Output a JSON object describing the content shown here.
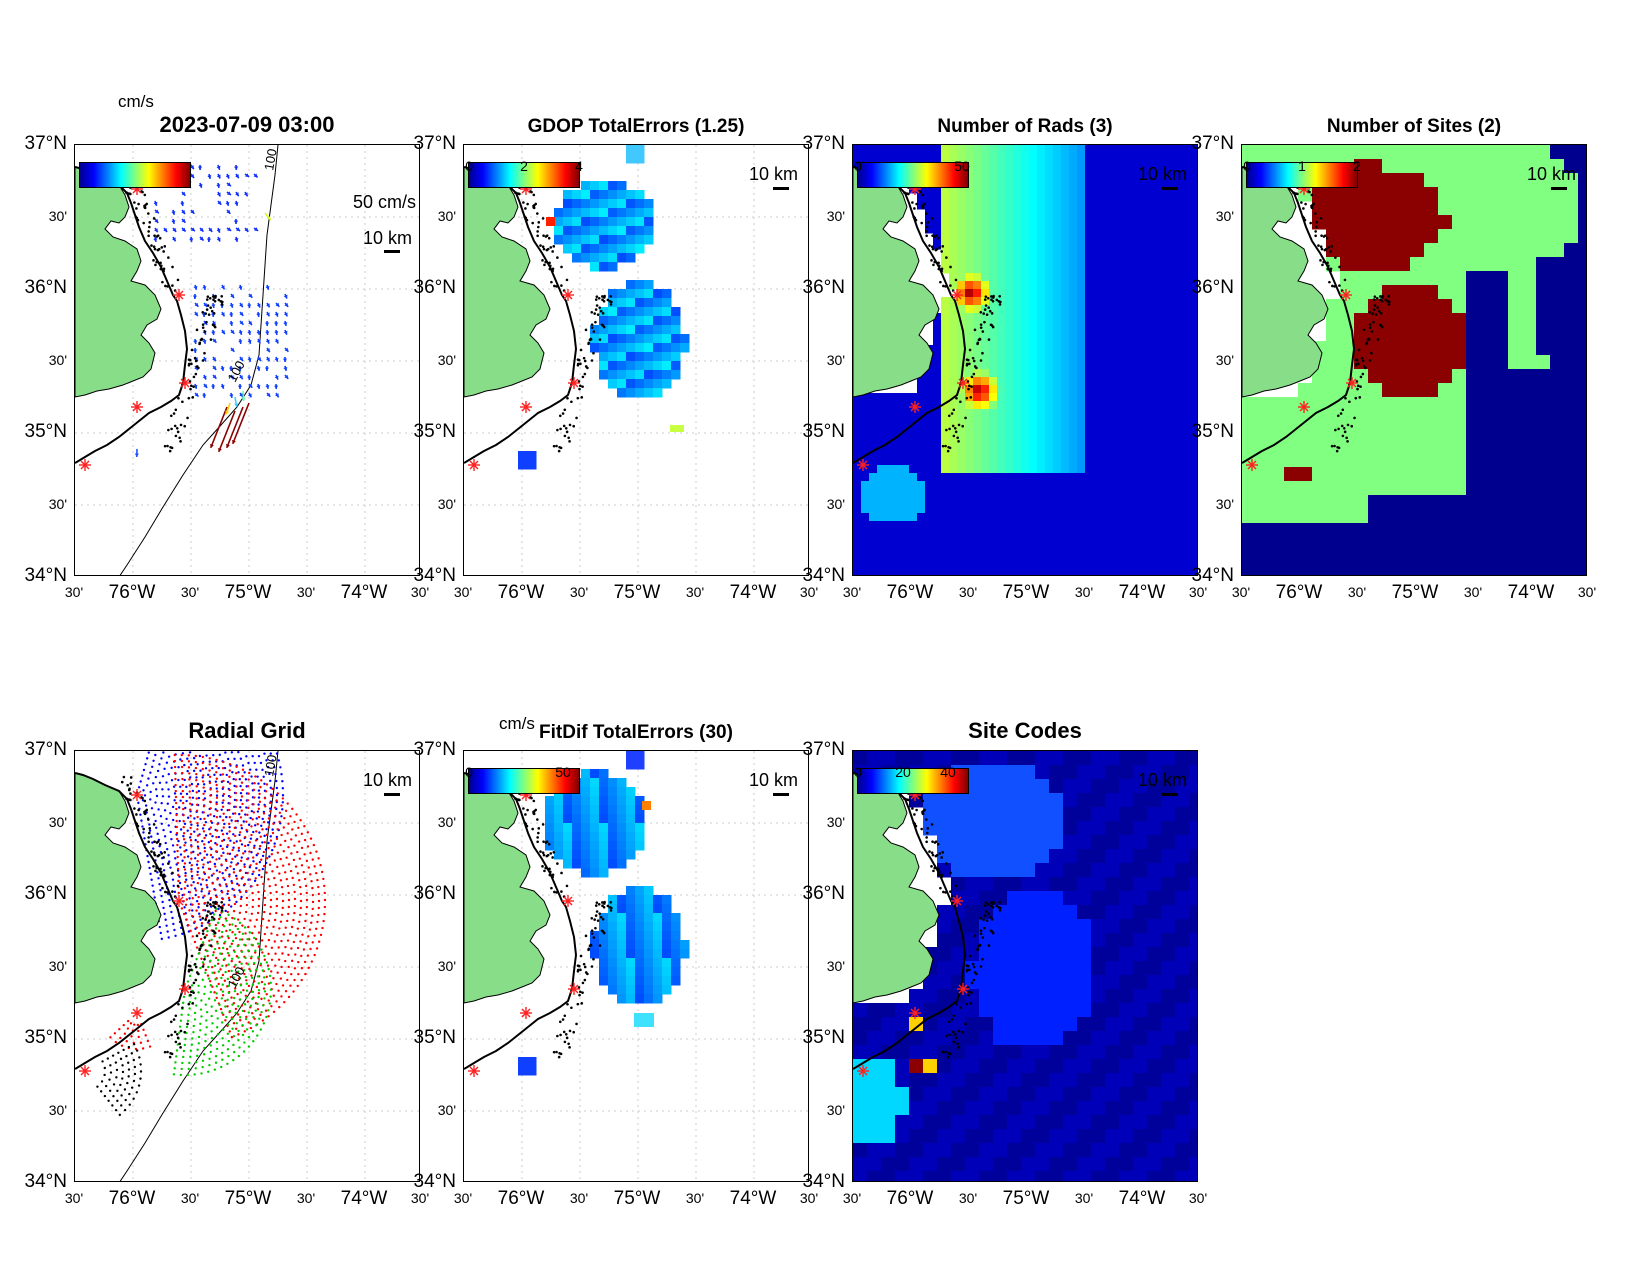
{
  "figure": {
    "timestamp": "2023-07-09 03:00",
    "unit_cms": "cm/s",
    "vector_scale": "50 cm/s",
    "scale_km": "10 km",
    "depth_contour": "100"
  },
  "axes": {
    "lat_labels": [
      "37°N",
      "30'",
      "36°N",
      "30'",
      "35°N",
      "30'",
      "34°N"
    ],
    "lon_labels": [
      "30'",
      "76°W",
      "30'",
      "75°W",
      "30'",
      "74°W",
      "30'"
    ]
  },
  "panels": [
    {
      "id": "total-vectors",
      "title": "",
      "colorbar_ticks": [],
      "unit": "cm/s"
    },
    {
      "id": "gdop",
      "title": "GDOP TotalErrors (1.25)",
      "colorbar_ticks": [
        "0",
        "2",
        "4"
      ]
    },
    {
      "id": "num-rads",
      "title": "Number of Rads (3)",
      "colorbar_ticks": [
        "0",
        "50"
      ]
    },
    {
      "id": "num-sites",
      "title": "Number of Sites (2)",
      "colorbar_ticks": [
        "0",
        "1",
        "2"
      ]
    },
    {
      "id": "radial-grid",
      "title": "Radial Grid",
      "colorbar_ticks": []
    },
    {
      "id": "fitdif",
      "title": "FitDif TotalErrors (30)",
      "colorbar_ticks": [
        "0",
        "50"
      ],
      "unit": "cm/s"
    },
    {
      "id": "site-codes",
      "title": "Site Codes",
      "colorbar_ticks": [
        "0",
        "20",
        "40"
      ]
    }
  ],
  "colors": {
    "land": "#88dd88",
    "navy": "#00008f",
    "dark_red": "#8b0000",
    "light_green": "#80ff80",
    "site_marker": "#ff2020"
  }
}
